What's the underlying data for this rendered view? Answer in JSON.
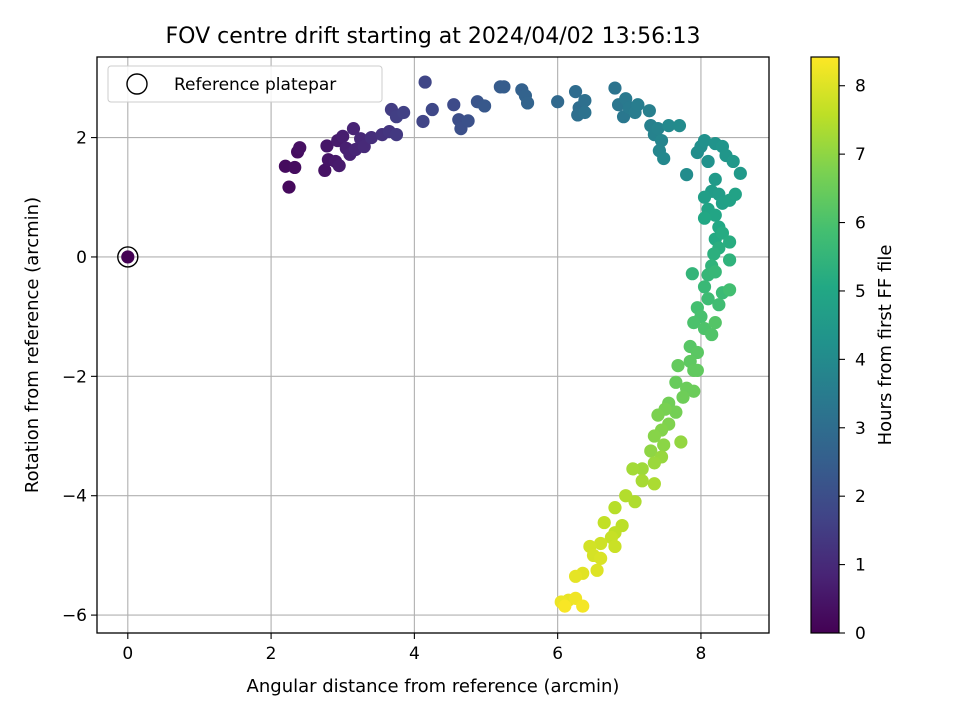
{
  "chart_data": {
    "type": "scatter",
    "title": "FOV centre drift starting at 2024/04/02 13:56:13",
    "xlabel": "Angular distance from reference (arcmin)",
    "ylabel": "Rotation from reference (arcmin)",
    "xlim": [
      -0.43,
      8.95
    ],
    "ylim": [
      -6.3,
      3.35
    ],
    "xticks": [
      0,
      2,
      4,
      6,
      8
    ],
    "yticks": [
      -6,
      -4,
      -2,
      0,
      2
    ],
    "grid": true,
    "legend": {
      "location": "upper left",
      "entries": [
        "Reference platepar"
      ]
    },
    "colorbar": {
      "label": "Hours from first FF file",
      "colormap": "viridis",
      "range": [
        0,
        8.42
      ],
      "ticks": [
        0,
        1,
        2,
        3,
        4,
        5,
        6,
        7,
        8
      ]
    },
    "reference_point": {
      "x": 0,
      "y": 0,
      "marker": "open circle",
      "color": "#000000"
    },
    "series": [
      {
        "color_by": "hours",
        "points": [
          [
            0.0,
            0.0,
            0.0
          ],
          [
            2.25,
            1.17,
            0.2
          ],
          [
            2.2,
            1.52,
            0.25
          ],
          [
            2.33,
            1.5,
            0.28
          ],
          [
            2.37,
            1.76,
            0.3
          ],
          [
            2.4,
            1.83,
            0.35
          ],
          [
            2.75,
            1.45,
            0.4
          ],
          [
            2.8,
            1.63,
            0.45
          ],
          [
            2.78,
            1.86,
            0.5
          ],
          [
            2.9,
            1.6,
            0.55
          ],
          [
            2.95,
            1.53,
            0.6
          ],
          [
            2.93,
            1.95,
            0.62
          ],
          [
            3.0,
            2.02,
            0.7
          ],
          [
            3.05,
            1.82,
            0.75
          ],
          [
            3.1,
            1.72,
            0.8
          ],
          [
            3.15,
            2.15,
            0.85
          ],
          [
            3.18,
            1.8,
            0.9
          ],
          [
            3.25,
            1.98,
            0.95
          ],
          [
            3.3,
            1.85,
            1.0
          ],
          [
            3.4,
            2.0,
            1.1
          ],
          [
            3.55,
            2.05,
            1.2
          ],
          [
            3.65,
            2.1,
            1.3
          ],
          [
            3.75,
            2.05,
            1.4
          ],
          [
            3.68,
            2.47,
            1.5
          ],
          [
            3.75,
            2.35,
            1.55
          ],
          [
            3.85,
            2.42,
            1.6
          ],
          [
            4.12,
            2.27,
            1.7
          ],
          [
            4.15,
            2.93,
            1.75
          ],
          [
            4.25,
            2.47,
            1.8
          ],
          [
            4.55,
            2.55,
            1.9
          ],
          [
            4.62,
            2.3,
            2.0
          ],
          [
            4.65,
            2.15,
            2.05
          ],
          [
            4.75,
            2.28,
            2.1
          ],
          [
            4.88,
            2.6,
            2.2
          ],
          [
            4.98,
            2.53,
            2.3
          ],
          [
            5.2,
            2.85,
            2.4
          ],
          [
            5.25,
            2.85,
            2.45
          ],
          [
            5.5,
            2.8,
            2.6
          ],
          [
            5.55,
            2.7,
            2.65
          ],
          [
            5.58,
            2.58,
            2.7
          ],
          [
            6.0,
            2.6,
            2.85
          ],
          [
            6.25,
            2.77,
            2.95
          ],
          [
            6.3,
            2.5,
            3.0
          ],
          [
            6.28,
            2.38,
            3.05
          ],
          [
            6.38,
            2.62,
            3.1
          ],
          [
            6.38,
            2.42,
            3.15
          ],
          [
            6.8,
            2.83,
            3.25
          ],
          [
            6.85,
            2.55,
            3.3
          ],
          [
            6.92,
            2.35,
            3.35
          ],
          [
            6.95,
            2.65,
            3.4
          ],
          [
            7.0,
            2.5,
            3.45
          ],
          [
            7.08,
            2.42,
            3.5
          ],
          [
            7.12,
            2.55,
            3.55
          ],
          [
            7.28,
            2.45,
            3.6
          ],
          [
            7.3,
            2.2,
            3.65
          ],
          [
            7.35,
            2.05,
            3.7
          ],
          [
            7.4,
            2.15,
            3.75
          ],
          [
            7.45,
            1.95,
            3.8
          ],
          [
            7.42,
            1.78,
            3.85
          ],
          [
            7.48,
            1.65,
            3.9
          ],
          [
            7.55,
            2.2,
            3.95
          ],
          [
            7.7,
            2.2,
            4.0
          ],
          [
            7.8,
            1.38,
            4.05
          ],
          [
            7.95,
            1.75,
            4.1
          ],
          [
            8.0,
            1.85,
            4.15
          ],
          [
            8.05,
            1.95,
            4.2
          ],
          [
            8.1,
            1.6,
            4.25
          ],
          [
            8.2,
            1.9,
            4.3
          ],
          [
            8.3,
            1.85,
            4.35
          ],
          [
            8.35,
            1.7,
            4.4
          ],
          [
            8.45,
            1.6,
            4.45
          ],
          [
            8.55,
            1.4,
            4.5
          ],
          [
            8.2,
            1.3,
            4.55
          ],
          [
            8.15,
            1.1,
            4.6
          ],
          [
            8.25,
            1.05,
            4.65
          ],
          [
            8.05,
            1.0,
            4.7
          ],
          [
            8.3,
            0.9,
            4.75
          ],
          [
            8.4,
            0.95,
            4.8
          ],
          [
            8.48,
            1.05,
            4.85
          ],
          [
            8.1,
            0.8,
            4.9
          ],
          [
            8.2,
            0.7,
            4.95
          ],
          [
            8.05,
            0.65,
            5.0
          ],
          [
            8.25,
            0.5,
            5.05
          ],
          [
            8.2,
            0.3,
            5.1
          ],
          [
            8.3,
            0.4,
            5.15
          ],
          [
            8.4,
            0.25,
            5.2
          ],
          [
            8.25,
            0.15,
            5.25
          ],
          [
            8.18,
            0.05,
            5.3
          ],
          [
            8.4,
            -0.05,
            5.4
          ],
          [
            8.15,
            -0.15,
            5.45
          ],
          [
            7.88,
            -0.28,
            5.5
          ],
          [
            8.1,
            -0.3,
            5.55
          ],
          [
            8.2,
            -0.25,
            5.6
          ],
          [
            8.05,
            -0.5,
            5.65
          ],
          [
            8.3,
            -0.6,
            5.7
          ],
          [
            8.1,
            -0.7,
            5.75
          ],
          [
            8.25,
            -0.8,
            5.8
          ],
          [
            8.4,
            -0.55,
            5.85
          ],
          [
            7.95,
            -0.85,
            5.9
          ],
          [
            8.0,
            -1.0,
            5.95
          ],
          [
            7.9,
            -1.1,
            6.0
          ],
          [
            8.05,
            -1.2,
            6.05
          ],
          [
            8.15,
            -1.3,
            6.1
          ],
          [
            8.2,
            -1.1,
            6.15
          ],
          [
            7.85,
            -1.5,
            6.2
          ],
          [
            7.95,
            -1.6,
            6.25
          ],
          [
            7.85,
            -1.75,
            6.3
          ],
          [
            7.9,
            -1.9,
            6.35
          ],
          [
            7.95,
            -1.9,
            6.35
          ],
          [
            7.68,
            -1.82,
            6.4
          ],
          [
            7.65,
            -2.1,
            6.45
          ],
          [
            7.8,
            -2.2,
            6.5
          ],
          [
            7.9,
            -2.25,
            6.5
          ],
          [
            7.75,
            -2.35,
            6.55
          ],
          [
            7.55,
            -2.45,
            6.6
          ],
          [
            7.65,
            -2.6,
            6.65
          ],
          [
            7.5,
            -2.55,
            6.7
          ],
          [
            7.4,
            -2.65,
            6.75
          ],
          [
            7.55,
            -2.8,
            6.8
          ],
          [
            7.45,
            -2.9,
            6.85
          ],
          [
            7.35,
            -3.0,
            6.9
          ],
          [
            7.48,
            -3.15,
            6.95
          ],
          [
            7.3,
            -3.25,
            7.0
          ],
          [
            7.72,
            -3.1,
            7.05
          ],
          [
            7.45,
            -3.35,
            7.1
          ],
          [
            7.35,
            -3.45,
            7.15
          ],
          [
            7.18,
            -3.55,
            7.2
          ],
          [
            7.05,
            -3.55,
            7.25
          ],
          [
            7.18,
            -3.75,
            7.3
          ],
          [
            7.35,
            -3.8,
            7.35
          ],
          [
            7.08,
            -4.1,
            7.4
          ],
          [
            6.95,
            -4.0,
            7.45
          ],
          [
            6.8,
            -4.2,
            7.5
          ],
          [
            6.9,
            -4.5,
            7.55
          ],
          [
            6.8,
            -4.62,
            7.6
          ],
          [
            6.65,
            -4.45,
            7.65
          ],
          [
            6.75,
            -4.7,
            7.7
          ],
          [
            6.8,
            -4.85,
            7.75
          ],
          [
            6.6,
            -4.8,
            7.8
          ],
          [
            6.45,
            -4.85,
            7.85
          ],
          [
            6.5,
            -5.0,
            7.9
          ],
          [
            6.6,
            -5.05,
            7.95
          ],
          [
            6.55,
            -5.25,
            8.0
          ],
          [
            6.35,
            -5.3,
            8.05
          ],
          [
            6.25,
            -5.35,
            8.1
          ],
          [
            6.15,
            -5.75,
            8.15
          ],
          [
            6.05,
            -5.78,
            8.2
          ],
          [
            6.25,
            -5.72,
            8.25
          ],
          [
            6.35,
            -5.85,
            8.3
          ],
          [
            6.1,
            -5.85,
            8.35
          ]
        ]
      }
    ]
  }
}
